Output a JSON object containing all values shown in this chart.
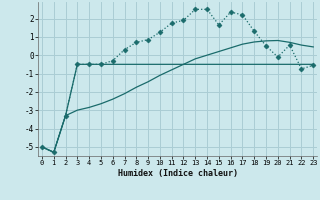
{
  "background_color": "#cce8ec",
  "grid_color": "#aacdd4",
  "line_color": "#1a6b6b",
  "xlabel": "Humidex (Indice chaleur)",
  "x_values": [
    0,
    1,
    2,
    3,
    4,
    5,
    6,
    7,
    8,
    9,
    10,
    11,
    12,
    13,
    14,
    15,
    16,
    17,
    18,
    19,
    20,
    21,
    22,
    23
  ],
  "ylim": [
    -5.5,
    2.9
  ],
  "xlim": [
    -0.3,
    23.3
  ],
  "yticks": [
    -5,
    -4,
    -3,
    -2,
    -1,
    0,
    1,
    2
  ],
  "xticks": [
    0,
    1,
    2,
    3,
    4,
    5,
    6,
    7,
    8,
    9,
    10,
    11,
    12,
    13,
    14,
    15,
    16,
    17,
    18,
    19,
    20,
    21,
    22,
    23
  ],
  "series1": [
    -5.0,
    -5.3,
    -3.3,
    -0.5,
    -0.5,
    -0.5,
    -0.3,
    0.3,
    0.7,
    0.85,
    1.25,
    1.75,
    1.9,
    2.5,
    2.5,
    1.65,
    2.35,
    2.2,
    1.3,
    0.5,
    -0.1,
    0.55,
    -0.75,
    -0.55
  ],
  "series2": [
    -5.0,
    -5.3,
    -3.3,
    -3.0,
    -2.85,
    -2.65,
    -2.4,
    -2.1,
    -1.75,
    -1.45,
    -1.1,
    -0.8,
    -0.5,
    -0.2,
    0.0,
    0.2,
    0.4,
    0.6,
    0.72,
    0.78,
    0.8,
    0.7,
    0.55,
    0.45
  ],
  "series3": [
    -5.0,
    -5.3,
    -3.3,
    -0.5,
    -0.5,
    -0.5,
    -0.5,
    -0.5,
    -0.5,
    -0.5,
    -0.5,
    -0.5,
    -0.5,
    -0.5,
    -0.5,
    -0.5,
    -0.5,
    -0.5,
    -0.5,
    -0.5,
    -0.5,
    -0.5,
    -0.5,
    -0.5
  ]
}
